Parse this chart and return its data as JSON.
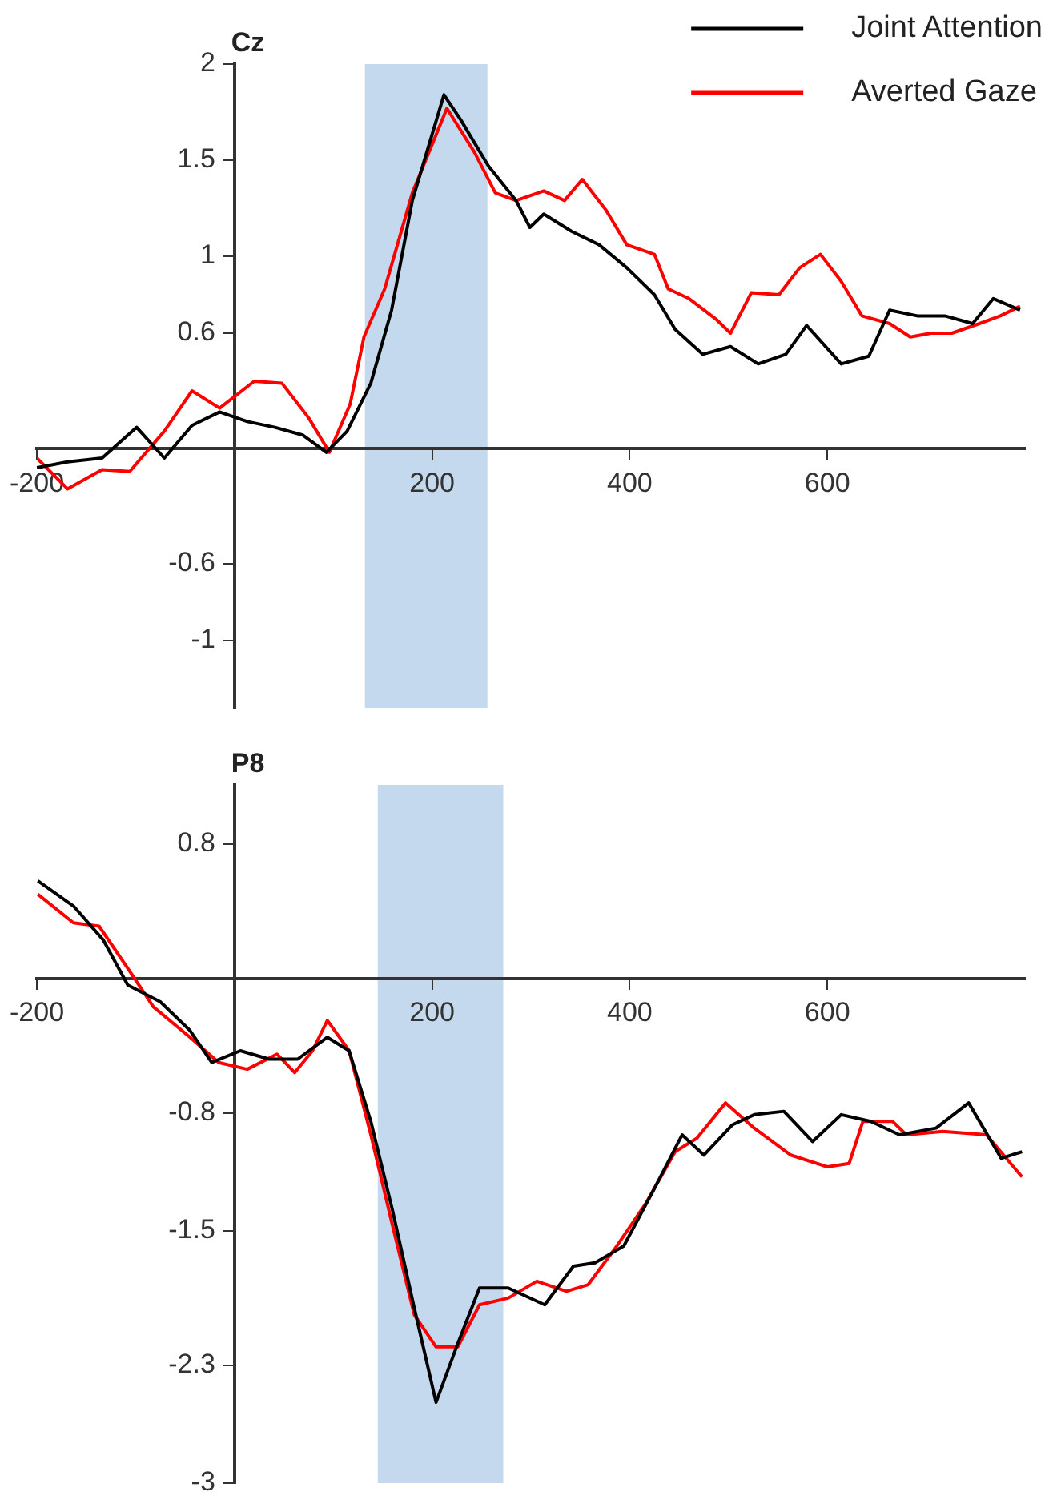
{
  "chart_data": [
    {
      "type": "line",
      "title": "Cz",
      "legend": "top right",
      "marker": "none",
      "line_style": "solid",
      "xlim": [
        -200,
        800
      ],
      "xticks": [
        -200,
        200,
        400,
        600
      ],
      "ylim": [
        -1.35,
        2
      ],
      "yticks": [
        2,
        1.5,
        1,
        0.6,
        -0.6,
        -1
      ],
      "bands": [
        {
          "axis": "x",
          "from": 132,
          "to": 256,
          "color": "#c5d9ee"
        }
      ],
      "series": [
        {
          "name": "Joint Attention",
          "color": "#000000",
          "x": [
            -200,
            -169,
            -134,
            -99,
            -71,
            -43,
            -15,
            13,
            41,
            69,
            93,
            114,
            138,
            159,
            180,
            212,
            229,
            257,
            285,
            299,
            313,
            341,
            369,
            397,
            425,
            446,
            474,
            502,
            530,
            558,
            579,
            614,
            642,
            663,
            691,
            719,
            747,
            768,
            795
          ],
          "values": [
            -0.1,
            -0.07,
            -0.05,
            0.11,
            -0.05,
            0.12,
            0.19,
            0.14,
            0.11,
            0.07,
            -0.02,
            0.09,
            0.34,
            0.72,
            1.29,
            1.84,
            1.71,
            1.47,
            1.29,
            1.15,
            1.22,
            1.13,
            1.06,
            0.94,
            0.8,
            0.62,
            0.49,
            0.53,
            0.44,
            0.49,
            0.64,
            0.44,
            0.48,
            0.72,
            0.69,
            0.69,
            0.65,
            0.78,
            0.72
          ]
        },
        {
          "name": "Averted Gaze",
          "color": "#ff0000",
          "x": [
            -200,
            -169,
            -134,
            -106,
            -71,
            -43,
            -15,
            20,
            48,
            75,
            96,
            117,
            131,
            152,
            180,
            215,
            243,
            264,
            285,
            313,
            334,
            352,
            376,
            397,
            425,
            439,
            460,
            488,
            502,
            523,
            551,
            572,
            593,
            614,
            635,
            663,
            684,
            705,
            726,
            754,
            775,
            795
          ],
          "values": [
            -0.05,
            -0.21,
            -0.11,
            -0.12,
            0.09,
            0.3,
            0.21,
            0.35,
            0.34,
            0.16,
            -0.02,
            0.23,
            0.58,
            0.83,
            1.33,
            1.77,
            1.54,
            1.33,
            1.29,
            1.34,
            1.29,
            1.4,
            1.24,
            1.06,
            1.01,
            0.83,
            0.78,
            0.67,
            0.6,
            0.81,
            0.8,
            0.94,
            1.01,
            0.87,
            0.69,
            0.65,
            0.58,
            0.6,
            0.6,
            0.65,
            0.69,
            0.74
          ]
        }
      ]
    },
    {
      "type": "line",
      "title": "P8",
      "marker": "none",
      "line_style": "solid",
      "xlim": [
        -200,
        800
      ],
      "xticks": [
        -200,
        200,
        400,
        600
      ],
      "ylim": [
        -3,
        1.15
      ],
      "yticks": [
        0.8,
        -0.8,
        -1.5,
        -2.3,
        -3
      ],
      "bands": [
        {
          "axis": "x",
          "from": 145,
          "to": 272,
          "color": "#c5d9ee"
        }
      ],
      "series": [
        {
          "color": "#000000",
          "x": [
            -199,
            -163,
            -133,
            -108,
            -75,
            -45,
            -23,
            6,
            35,
            64,
            94,
            116,
            138,
            160,
            182,
            204,
            226,
            248,
            277,
            314,
            343,
            365,
            394,
            424,
            453,
            475,
            504,
            526,
            556,
            585,
            614,
            644,
            673,
            710,
            743,
            776,
            797
          ],
          "values": [
            0.58,
            0.43,
            0.23,
            -0.04,
            -0.14,
            -0.31,
            -0.5,
            -0.43,
            -0.48,
            -0.48,
            -0.35,
            -0.43,
            -0.85,
            -1.38,
            -1.96,
            -2.52,
            -2.17,
            -1.84,
            -1.84,
            -1.94,
            -1.71,
            -1.69,
            -1.59,
            -1.26,
            -0.93,
            -1.05,
            -0.87,
            -0.81,
            -0.79,
            -0.97,
            -0.81,
            -0.85,
            -0.93,
            -0.89,
            -0.74,
            -1.07,
            -1.03
          ]
        },
        {
          "color": "#ff0000",
          "x": [
            -199,
            -163,
            -137,
            -108,
            -82,
            -45,
            -16,
            13,
            43,
            61,
            79,
            94,
            116,
            138,
            160,
            182,
            204,
            226,
            248,
            277,
            306,
            336,
            358,
            387,
            416,
            446,
            468,
            497,
            526,
            563,
            600,
            622,
            636,
            666,
            680,
            717,
            761,
            797
          ],
          "values": [
            0.5,
            0.33,
            0.31,
            0.06,
            -0.17,
            -0.35,
            -0.5,
            -0.54,
            -0.45,
            -0.56,
            -0.43,
            -0.25,
            -0.43,
            -0.93,
            -1.47,
            -2.0,
            -2.19,
            -2.19,
            -1.94,
            -1.9,
            -1.8,
            -1.86,
            -1.82,
            -1.59,
            -1.34,
            -1.03,
            -0.95,
            -0.74,
            -0.89,
            -1.05,
            -1.12,
            -1.1,
            -0.85,
            -0.85,
            -0.93,
            -0.91,
            -0.93,
            -1.18
          ]
        }
      ]
    }
  ]
}
